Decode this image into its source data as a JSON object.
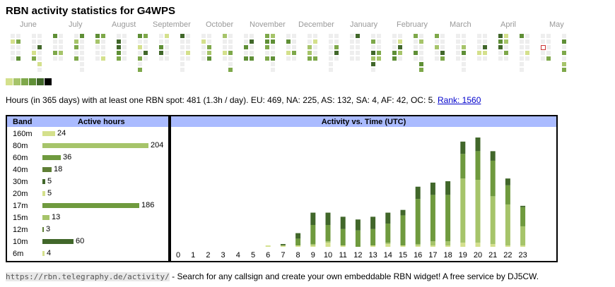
{
  "title": "RBN activity statistics for G4WPS",
  "months": [
    "June",
    "July",
    "August",
    "September",
    "October",
    "November",
    "December",
    "January",
    "February",
    "March",
    "April",
    "May"
  ],
  "colors": {
    "lvl1": "#d4e08c",
    "lvl2": "#a6c46a",
    "lvl3": "#7ea84a",
    "lvl4": "#5f8f36",
    "lvl5": "#41672a",
    "lvl6": "#000000",
    "empty": "#eeeeee",
    "header": "#aabbff",
    "today_border": "#cc3333"
  },
  "stats": {
    "text": "Hours (in 365 days) with at least one RBN spot: 481 (1.3h / day). EU: 469, NA: 225, AS: 132, SA: 4, AF: 42, OC: 5.",
    "rank_label": "Rank: 1560"
  },
  "band_table": {
    "header_band": "Band",
    "header_hours": "Active hours",
    "rows": [
      {
        "band": "160m",
        "hours": 24,
        "hours_label": "24",
        "color": "#d4e08c"
      },
      {
        "band": "80m",
        "hours": 204,
        "hours_label": "204",
        "color": "#a6c46a"
      },
      {
        "band": "60m",
        "hours": 36,
        "hours_label": "36",
        "color": "#6f9a3e"
      },
      {
        "band": "40m",
        "hours": 18,
        "hours_label": "18",
        "color": "#5f7f36"
      },
      {
        "band": "30m",
        "hours": 5,
        "hours_label": "5",
        "color": "#41672a"
      },
      {
        "band": "20m",
        "hours": 5,
        "hours_label": "5",
        "color": "#d4e08c"
      },
      {
        "band": "17m",
        "hours": 186,
        "hours_label": "186",
        "color": "#6f9a3e"
      },
      {
        "band": "15m",
        "hours": 13,
        "hours_label": "13",
        "color": "#a6c46a"
      },
      {
        "band": "12m",
        "hours": 3,
        "hours_label": "3",
        "color": "#5f7f36"
      },
      {
        "band": "10m",
        "hours": 60,
        "hours_label": "60",
        "color": "#41672a"
      },
      {
        "band": "6m",
        "hours": 4,
        "hours_label": "4",
        "color": "#d4e08c"
      }
    ]
  },
  "chart_data": {
    "type": "bar",
    "title": "Activity vs. Time (UTC)",
    "categories": [
      "0",
      "1",
      "2",
      "3",
      "4",
      "5",
      "6",
      "7",
      "8",
      "9",
      "10",
      "11",
      "12",
      "13",
      "14",
      "15",
      "16",
      "17",
      "18",
      "19",
      "20",
      "21",
      "22",
      "23"
    ],
    "totals": [
      0,
      0,
      0,
      0,
      0,
      0,
      1,
      2,
      10,
      25,
      25,
      22,
      20,
      22,
      25,
      27,
      44,
      47,
      48,
      77,
      80,
      70,
      50,
      30
    ],
    "series": [
      {
        "color": "#d4e08c",
        "values": [
          0,
          0,
          0,
          0,
          0,
          0,
          1,
          1,
          1,
          1,
          3,
          1,
          0,
          1,
          2,
          1,
          1,
          1,
          1,
          3,
          3,
          2,
          1,
          1
        ]
      },
      {
        "color": "#a6c46a",
        "values": [
          0,
          0,
          0,
          0,
          0,
          0,
          0,
          0,
          0,
          1,
          1,
          0,
          0,
          0,
          1,
          0,
          1,
          3,
          3,
          47,
          46,
          35,
          30,
          14
        ]
      },
      {
        "color": "#6f9a3e",
        "values": [
          0,
          0,
          0,
          0,
          0,
          0,
          0,
          0,
          5,
          14,
          12,
          12,
          12,
          12,
          14,
          22,
          33,
          34,
          34,
          18,
          21,
          26,
          14,
          14
        ]
      },
      {
        "color": "#41672a",
        "values": [
          0,
          0,
          0,
          0,
          0,
          0,
          0,
          1,
          4,
          9,
          9,
          9,
          8,
          9,
          8,
          4,
          9,
          9,
          10,
          9,
          10,
          7,
          5,
          1
        ]
      }
    ]
  }
}
